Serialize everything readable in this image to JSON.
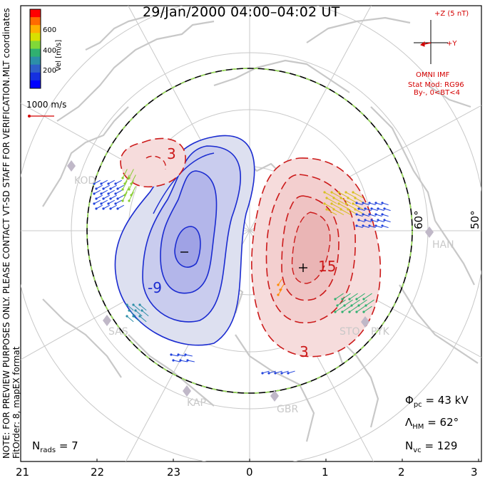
{
  "title": "29/Jan/2000 04:00–04:02 UT",
  "colorbar": {
    "label": "Vel [m/s]",
    "ticks": [
      "600",
      "400",
      "200"
    ],
    "colors": [
      "#ff0000",
      "#ff6a00",
      "#ffb000",
      "#d8e000",
      "#80d838",
      "#30b070",
      "#2c8fa8",
      "#2f5fc8",
      "#1530e0",
      "#0000ff"
    ]
  },
  "coords_label": "MLT coordinates",
  "vector_scale": "1000 m/s",
  "note_line1": "NOTE: FOR PREVIEW PURPOSES ONLY. PLEASE CONTACT VT-SD STAFF FOR VERIFICATION.",
  "note_line2": "FitOrder: 8, mapEX format",
  "imf": {
    "z_label": "+Z (5 nT)",
    "y_label": "+Y",
    "source": "OMNI IMF",
    "stat_mod": "Stat Mod: RG96",
    "condition": "By-, 0<BT<4"
  },
  "stats": {
    "phi_symbol": "Φ",
    "phi_sub": "pc",
    "phi_value": "= 43 kV",
    "lambda_symbol": "Λ",
    "lambda_sub": "HM",
    "lambda_value": "= 62°",
    "nvc_symbol": "N",
    "nvc_sub": "vc",
    "nvc_value": "= 129",
    "nrads_symbol": "N",
    "nrads_sub": "rads",
    "nrads_value": "= 7"
  },
  "mlt_labels": [
    "21",
    "22",
    "23",
    "0",
    "1",
    "2",
    "3"
  ],
  "lat_labels": [
    "60°",
    "50°"
  ],
  "stations": [
    "KOD",
    "HAN",
    "SAS",
    "PYK",
    "STO",
    "KAP",
    "GBR"
  ],
  "contours": {
    "neg_label": "-9",
    "pos_label": "15",
    "pos_label2": "3",
    "pos_label3": "3",
    "min_marker": "−",
    "max_marker": "+"
  }
}
